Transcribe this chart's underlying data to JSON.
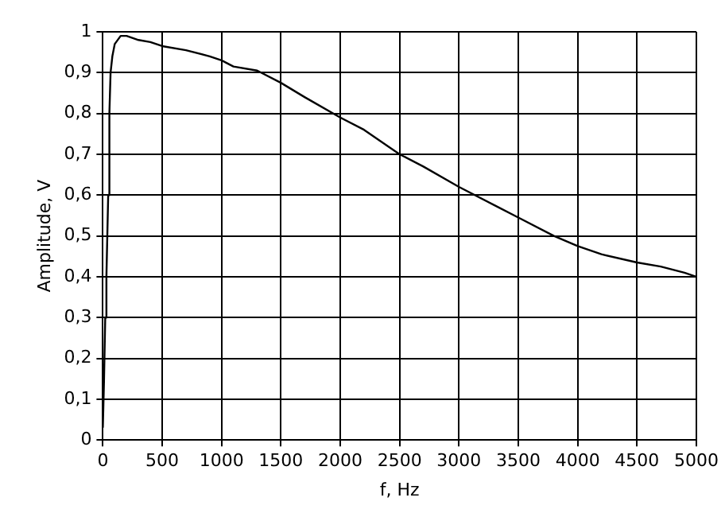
{
  "chart_data": {
    "type": "line",
    "xlabel": "f, Hz",
    "ylabel": "Amplitude, V",
    "xlim": [
      0,
      5000
    ],
    "xticks": [
      0,
      500,
      1000,
      1500,
      2000,
      2500,
      3000,
      3500,
      4000,
      4500,
      5000
    ],
    "ylim": [
      0,
      1
    ],
    "yticks": [
      0,
      {
        "value": 0.1,
        "label": "0,1"
      },
      {
        "value": 0.2,
        "label": "0,2"
      },
      {
        "value": 0.3,
        "label": "0,3"
      },
      {
        "value": 0.4,
        "label": "0,4"
      },
      {
        "value": 0.5,
        "label": "0,5"
      },
      {
        "value": 0.6,
        "label": "0,6"
      },
      {
        "value": 0.7,
        "label": "0,7"
      },
      {
        "value": 0.8,
        "label": "0,8"
      },
      {
        "value": 0.9,
        "label": "0,9"
      },
      1
    ],
    "grid": true,
    "marker": "none",
    "line_style": "solid",
    "series": [
      {
        "color": "#000000",
        "x": [
          0,
          10,
          20,
          30,
          45,
          55,
          65,
          80,
          100,
          150,
          200,
          300,
          400,
          500,
          700,
          900,
          1000,
          1100,
          1300,
          1500,
          1700,
          2000,
          2200,
          2500,
          2700,
          3000,
          3300,
          3500,
          3800,
          4000,
          4200,
          4500,
          4700,
          4900,
          5000
        ],
        "values": [
          0.03,
          0.15,
          0.3,
          0.4,
          0.6,
          0.8,
          0.9,
          0.94,
          0.97,
          0.99,
          0.99,
          0.98,
          0.975,
          0.965,
          0.955,
          0.94,
          0.93,
          0.915,
          0.905,
          0.875,
          0.84,
          0.79,
          0.76,
          0.7,
          0.67,
          0.62,
          0.575,
          0.545,
          0.5,
          0.475,
          0.455,
          0.435,
          0.425,
          0.41,
          0.4
        ]
      }
    ]
  }
}
